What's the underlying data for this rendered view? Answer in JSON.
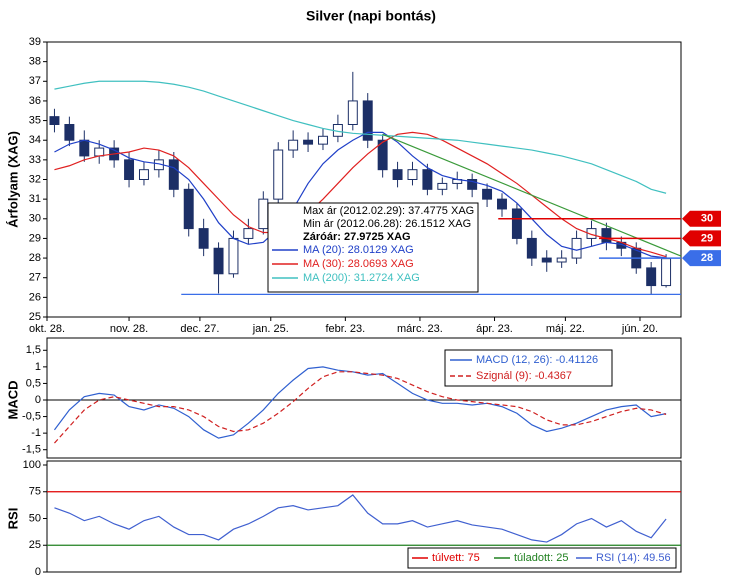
{
  "chart_data": [
    {
      "type": "candlestick",
      "title": "Silver (napi bontás)",
      "ylabel": "Árfolyam (XAG)",
      "x": [
        2,
        6,
        10,
        14,
        18,
        22,
        26,
        30,
        34,
        38,
        42,
        46,
        50,
        54,
        58,
        62,
        66,
        70,
        74,
        78,
        82,
        86,
        90,
        94,
        98,
        102,
        106,
        110,
        114,
        118,
        122,
        126,
        130,
        134,
        138,
        142,
        146,
        150,
        154,
        158,
        162,
        166
      ],
      "open": [
        35.2,
        34.8,
        34.0,
        33.2,
        33.6,
        33.0,
        32.0,
        32.5,
        33.0,
        31.5,
        29.5,
        28.5,
        27.2,
        29.0,
        29.5,
        31.0,
        33.5,
        34.0,
        33.8,
        34.2,
        34.8,
        36.0,
        34.0,
        32.5,
        32.0,
        32.5,
        31.5,
        31.8,
        32.0,
        31.5,
        31.0,
        30.5,
        29.0,
        28.0,
        27.8,
        28.0,
        29.0,
        29.5,
        28.8,
        28.5,
        27.5,
        26.6
      ],
      "high": [
        35.6,
        35.2,
        34.5,
        34.0,
        34.0,
        33.4,
        32.9,
        33.5,
        33.4,
        31.8,
        30.0,
        28.8,
        29.4,
        30.0,
        31.4,
        33.9,
        34.5,
        34.4,
        34.6,
        35.3,
        37.48,
        36.4,
        34.3,
        32.9,
        32.9,
        32.8,
        32.1,
        32.4,
        32.3,
        31.8,
        31.3,
        30.8,
        29.4,
        28.4,
        28.4,
        29.4,
        29.9,
        29.8,
        29.1,
        28.8,
        27.8,
        28.2
      ],
      "low": [
        34.4,
        33.7,
        32.9,
        32.8,
        32.6,
        31.6,
        31.7,
        32.1,
        31.1,
        29.1,
        28.1,
        26.2,
        27.0,
        28.7,
        29.2,
        30.7,
        33.1,
        33.4,
        33.5,
        33.9,
        34.5,
        33.6,
        32.1,
        31.6,
        31.7,
        31.2,
        31.2,
        31.5,
        31.1,
        30.6,
        30.1,
        28.7,
        27.6,
        27.3,
        27.5,
        27.7,
        28.6,
        28.4,
        28.1,
        27.2,
        26.15,
        26.5
      ],
      "close": [
        34.8,
        34.0,
        33.2,
        33.6,
        33.0,
        32.0,
        32.5,
        33.0,
        31.5,
        29.5,
        28.5,
        27.2,
        29.0,
        29.5,
        31.0,
        33.5,
        34.0,
        33.8,
        34.2,
        34.8,
        36.0,
        34.0,
        32.5,
        32.0,
        32.5,
        31.5,
        31.8,
        32.0,
        31.5,
        31.0,
        30.5,
        29.0,
        28.0,
        27.8,
        28.0,
        29.0,
        29.5,
        28.8,
        28.5,
        27.5,
        26.6,
        27.97
      ],
      "up_color": "#ffffff",
      "down_color": "#1c2f66",
      "candle_stroke": "#1c2f66",
      "series": [
        {
          "name": "MA (20): 28.0129 XAG",
          "color": "#2040c8",
          "values": [
            33.4,
            33.8,
            34.0,
            33.8,
            33.5,
            33.1,
            32.9,
            32.8,
            32.6,
            32.0,
            31.0,
            29.8,
            29.0,
            28.7,
            28.8,
            29.5,
            30.5,
            31.8,
            32.8,
            33.5,
            34.0,
            34.4,
            34.4,
            33.9,
            33.2,
            32.6,
            32.2,
            32.0,
            31.9,
            31.7,
            31.4,
            30.8,
            30.0,
            29.2,
            28.6,
            28.4,
            28.6,
            28.8,
            28.7,
            28.4,
            28.1,
            28.01
          ]
        },
        {
          "name": "MA (30): 28.0693 XAG",
          "color": "#e02020",
          "values": [
            32.5,
            32.7,
            33.0,
            33.2,
            33.3,
            33.4,
            33.6,
            33.5,
            33.2,
            32.6,
            31.8,
            31.0,
            30.2,
            29.6,
            29.3,
            29.3,
            29.6,
            30.3,
            31.0,
            31.8,
            32.6,
            33.3,
            33.9,
            34.3,
            34.4,
            34.3,
            34.0,
            33.6,
            33.2,
            32.8,
            32.3,
            31.8,
            31.2,
            30.6,
            30.0,
            29.5,
            29.2,
            29.0,
            28.8,
            28.5,
            28.3,
            28.07
          ]
        },
        {
          "name": "MA (200): 31.2724 XAG",
          "color": "#40c0c0",
          "values": [
            36.6,
            36.75,
            36.9,
            37.0,
            37.0,
            37.0,
            37.0,
            36.95,
            36.85,
            36.7,
            36.5,
            36.25,
            36.0,
            35.75,
            35.5,
            35.25,
            35.0,
            34.8,
            34.6,
            34.45,
            34.35,
            34.3,
            34.25,
            34.2,
            34.15,
            34.1,
            34.05,
            34.0,
            33.9,
            33.8,
            33.7,
            33.6,
            33.5,
            33.35,
            33.2,
            33.0,
            32.8,
            32.5,
            32.2,
            31.9,
            31.5,
            31.3
          ]
        }
      ],
      "annotations": [
        "Max ár (2012.02.29): 37.4775 XAG",
        "Min ár (2012.06.28): 26.1512 XAG",
        "Záróár: 27.9725 XAG"
      ],
      "levels": [
        {
          "value": 30,
          "x": 121,
          "color": "#e00000"
        },
        {
          "value": 29,
          "x": 148,
          "color": "#e00000"
        },
        {
          "value": 28,
          "x": 148,
          "color": "#3a6ee8"
        }
      ],
      "min_line": {
        "value": 26.1512,
        "x": 36,
        "color": "#3a6ee8"
      },
      "trendline": {
        "x": [
          90,
          170
        ],
        "y": [
          34.3,
          28.1
        ],
        "color": "#3a9a3a"
      },
      "xlim": [
        0,
        170
      ],
      "xticks": [
        {
          "value": 0,
          "label": "okt. 28."
        },
        {
          "value": 22,
          "label": "nov. 28."
        },
        {
          "value": 41,
          "label": "dec. 27."
        },
        {
          "value": 60,
          "label": "jan. 25."
        },
        {
          "value": 80,
          "label": "febr. 23."
        },
        {
          "value": 100,
          "label": "márc. 23."
        },
        {
          "value": 120,
          "label": "ápr. 23."
        },
        {
          "value": 139,
          "label": "máj. 22."
        },
        {
          "value": 159,
          "label": "jún. 20."
        }
      ],
      "ylim": [
        25,
        39
      ],
      "yticks": [
        25,
        26,
        27,
        28,
        29,
        30,
        31,
        32,
        33,
        34,
        35,
        36,
        37,
        38,
        39
      ]
    },
    {
      "type": "line",
      "ylabel": "MACD",
      "x": [
        2,
        6,
        10,
        14,
        18,
        22,
        26,
        30,
        34,
        38,
        42,
        46,
        50,
        54,
        58,
        62,
        66,
        70,
        74,
        78,
        82,
        86,
        90,
        94,
        98,
        102,
        106,
        110,
        114,
        118,
        122,
        126,
        130,
        134,
        138,
        142,
        146,
        150,
        154,
        158,
        162,
        166
      ],
      "series": [
        {
          "name": "MACD (12, 26): -0.41126",
          "color": "#3060d0",
          "dash": false,
          "values": [
            -0.9,
            -0.3,
            0.1,
            0.2,
            0.15,
            -0.2,
            -0.3,
            -0.15,
            -0.25,
            -0.5,
            -0.9,
            -1.15,
            -1.05,
            -0.7,
            -0.3,
            0.2,
            0.6,
            0.95,
            1.0,
            0.9,
            0.85,
            0.75,
            0.8,
            0.5,
            0.2,
            0.0,
            -0.1,
            -0.1,
            -0.15,
            -0.1,
            -0.2,
            -0.4,
            -0.75,
            -0.95,
            -0.85,
            -0.7,
            -0.5,
            -0.3,
            -0.2,
            -0.15,
            -0.5,
            -0.41126
          ]
        },
        {
          "name": "Szignál (9): -0.4367",
          "color": "#d02020",
          "dash": true,
          "values": [
            -1.3,
            -0.8,
            -0.3,
            0.0,
            0.1,
            0.0,
            -0.1,
            -0.2,
            -0.2,
            -0.3,
            -0.5,
            -0.8,
            -0.95,
            -0.9,
            -0.7,
            -0.4,
            -0.05,
            0.35,
            0.7,
            0.85,
            0.85,
            0.8,
            0.75,
            0.65,
            0.45,
            0.25,
            0.1,
            0.0,
            -0.05,
            -0.1,
            -0.15,
            -0.2,
            -0.35,
            -0.6,
            -0.75,
            -0.75,
            -0.65,
            -0.5,
            -0.35,
            -0.25,
            -0.3,
            -0.4367
          ]
        }
      ],
      "zero_line": 0,
      "xlim": [
        0,
        170
      ],
      "ylim": [
        -1.75,
        1.75
      ],
      "yticks": [
        {
          "value": 1.5,
          "label": "1,5"
        },
        1,
        {
          "value": 0.5,
          "label": "0,5"
        },
        0,
        {
          "value": -0.5,
          "label": "-0,5"
        },
        -1,
        {
          "value": -1.5,
          "label": "-1,5"
        }
      ]
    },
    {
      "type": "line",
      "ylabel": "RSI",
      "x": [
        2,
        6,
        10,
        14,
        18,
        22,
        26,
        30,
        34,
        38,
        42,
        46,
        50,
        54,
        58,
        62,
        66,
        70,
        74,
        78,
        82,
        86,
        90,
        94,
        98,
        102,
        106,
        110,
        114,
        118,
        122,
        126,
        130,
        134,
        138,
        142,
        146,
        150,
        154,
        158,
        162,
        166
      ],
      "reference_lines": [
        {
          "name": "túlvett: 75",
          "value": 75,
          "color": "#e00000"
        },
        {
          "name": "túladott: 25",
          "value": 25,
          "color": "#208020"
        }
      ],
      "series": [
        {
          "name": "RSI (14): 49.56",
          "color": "#4060d0",
          "dash": false,
          "values": [
            60,
            55,
            48,
            52,
            45,
            40,
            48,
            52,
            42,
            35,
            35,
            30,
            40,
            45,
            52,
            60,
            62,
            58,
            60,
            62,
            72,
            55,
            45,
            45,
            48,
            42,
            45,
            48,
            44,
            42,
            40,
            35,
            30,
            28,
            35,
            45,
            50,
            42,
            48,
            38,
            32,
            49.56
          ]
        }
      ],
      "xlim": [
        0,
        170
      ],
      "ylim": [
        0,
        100
      ],
      "yticks": [
        0,
        25,
        50,
        75,
        100
      ]
    }
  ]
}
